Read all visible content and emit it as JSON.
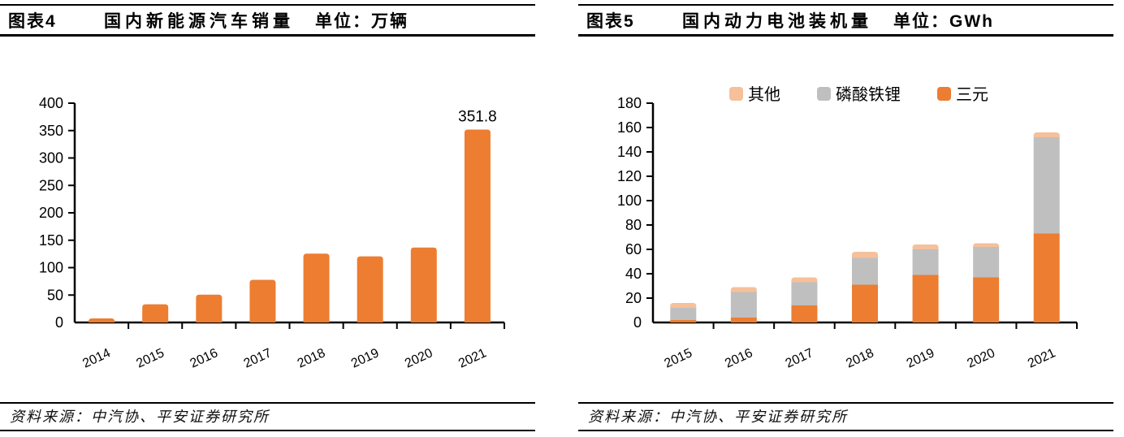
{
  "figures": [
    {
      "label": "图表4",
      "title": "国内新能源汽车销量",
      "unit_label": "单位：万辆",
      "source": "资料来源：中汽协、平安证券研究所"
    },
    {
      "label": "图表5",
      "title": "国内动力电池装机量",
      "unit_label": "单位：GWh",
      "source": "资料来源：中汽协、平安证券研究所"
    }
  ],
  "colors": {
    "orange": "#ED7D31",
    "gray": "#BFBFBF",
    "peach": "#F5C09A",
    "axis": "#000000",
    "text": "#000000"
  },
  "chart_data": [
    {
      "type": "bar",
      "title": "国内新能源汽车销量",
      "ylabel_unit": "万辆",
      "categories": [
        "2014",
        "2015",
        "2016",
        "2017",
        "2018",
        "2019",
        "2020",
        "2021"
      ],
      "values": [
        7.5,
        33.1,
        50.7,
        77.7,
        125.6,
        120.6,
        136.7,
        351.8
      ],
      "ylim": [
        0,
        400
      ],
      "ytick_step": 50,
      "grid": false,
      "bar_color": "#ED7D31",
      "annotations": [
        {
          "category": "2021",
          "text": "351.8"
        }
      ]
    },
    {
      "type": "stacked-bar",
      "title": "国内动力电池装机量",
      "ylabel_unit": "GWh",
      "categories": [
        "2015",
        "2016",
        "2017",
        "2018",
        "2019",
        "2020",
        "2021"
      ],
      "series": [
        {
          "name": "三元",
          "color": "#ED7D31",
          "values": [
            2,
            4,
            14,
            31,
            39,
            37,
            73
          ]
        },
        {
          "name": "磷酸铁锂",
          "color": "#BFBFBF",
          "values": [
            10,
            21,
            19,
            22,
            21,
            25,
            79
          ]
        },
        {
          "name": "其他",
          "color": "#F5C09A",
          "values": [
            4,
            4,
            4,
            5,
            4,
            3,
            4
          ]
        }
      ],
      "ylim": [
        0,
        180
      ],
      "ytick_step": 20,
      "grid": false,
      "legend": {
        "position": "top",
        "order": [
          "其他",
          "磷酸铁锂",
          "三元"
        ]
      }
    }
  ]
}
